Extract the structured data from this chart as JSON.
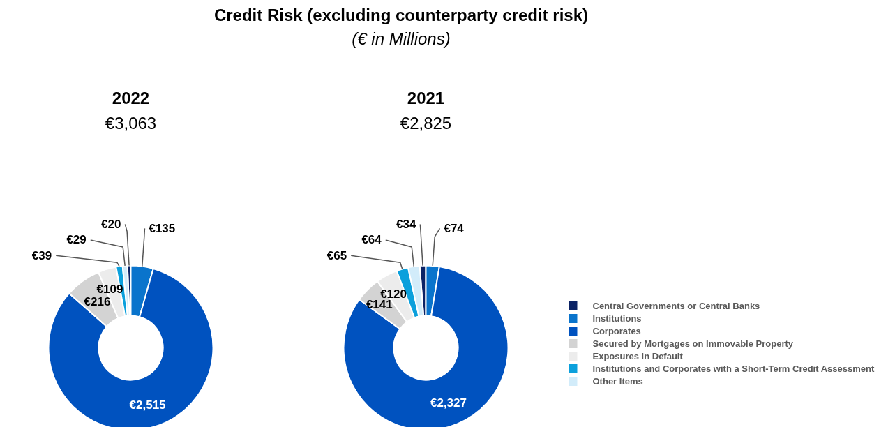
{
  "chart_data": [
    {
      "type": "donut",
      "title": "2022",
      "subtitle": "€3,063",
      "legend": "right",
      "annotations": [
        "Credit Risk (excluding counterparty credit risk)",
        "(€ in Millions)"
      ],
      "categories": [
        "Central Governments or Central Banks",
        "Institutions",
        "Corporates",
        "Secured by Mortgages on Immovable Property",
        "Exposures in Default",
        "Institutions and Corporates with a Short-Term Credit Assessment",
        "Other Items"
      ],
      "values": [
        20,
        135,
        2515,
        216,
        109,
        39,
        29
      ],
      "colors": [
        "#0b2265",
        "#0a74cc",
        "#0052bf",
        "#d3d3d3",
        "#ececec",
        "#0ba0dc",
        "#d2ecfa"
      ],
      "value_labels": [
        "€20",
        "€135",
        "€2,515",
        "€216",
        "€109",
        "€39",
        "€29"
      ]
    },
    {
      "type": "donut",
      "title": "2021",
      "subtitle": "€2,825",
      "categories": [
        null,
        null,
        null,
        null,
        null,
        null,
        null
      ],
      "values": [
        34,
        74,
        2327,
        141,
        120,
        65,
        64
      ],
      "colors": [
        "#0b2265",
        "#0a74cc",
        "#0052bf",
        "#d3d3d3",
        "#ececec",
        "#0ba0dc",
        "#d2ecfa"
      ],
      "value_labels": [
        "€34",
        "€74",
        "€2,327",
        "€141",
        "€120",
        "€65",
        "€64"
      ]
    }
  ]
}
